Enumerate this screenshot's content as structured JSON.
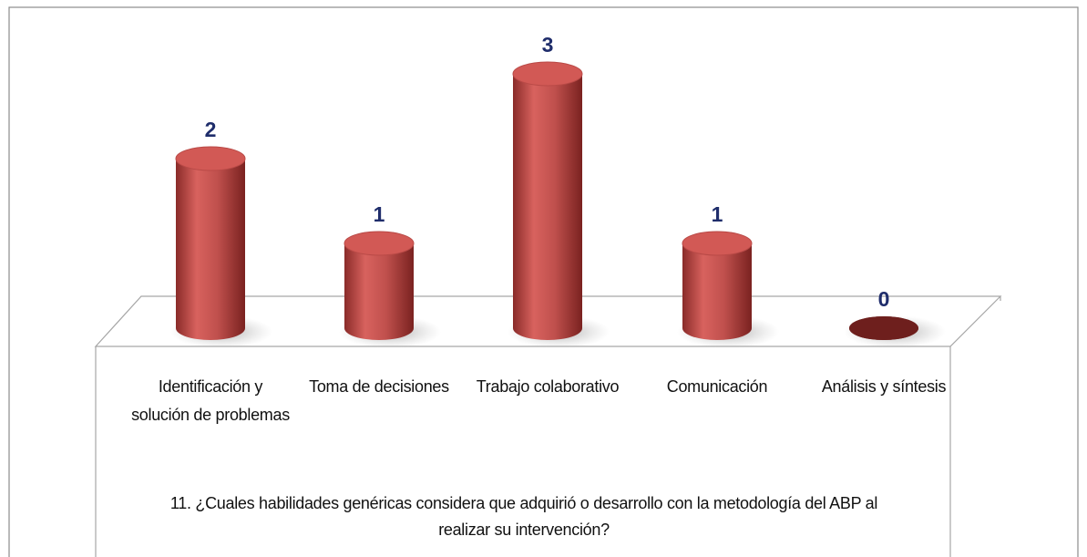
{
  "chart_data": {
    "type": "bar",
    "categories": [
      "Identificación y solución de problemas",
      "Toma de decisiones",
      "Trabajo colaborativo",
      "Comunicación",
      "Análisis y síntesis"
    ],
    "values": [
      2,
      1,
      3,
      1,
      0
    ],
    "color": "#c0504d",
    "x_label": "11. ¿Cuales habilidades genéricas considera que adquirió o desarrollo con la metodología del ABP al realizar su intervención?"
  }
}
